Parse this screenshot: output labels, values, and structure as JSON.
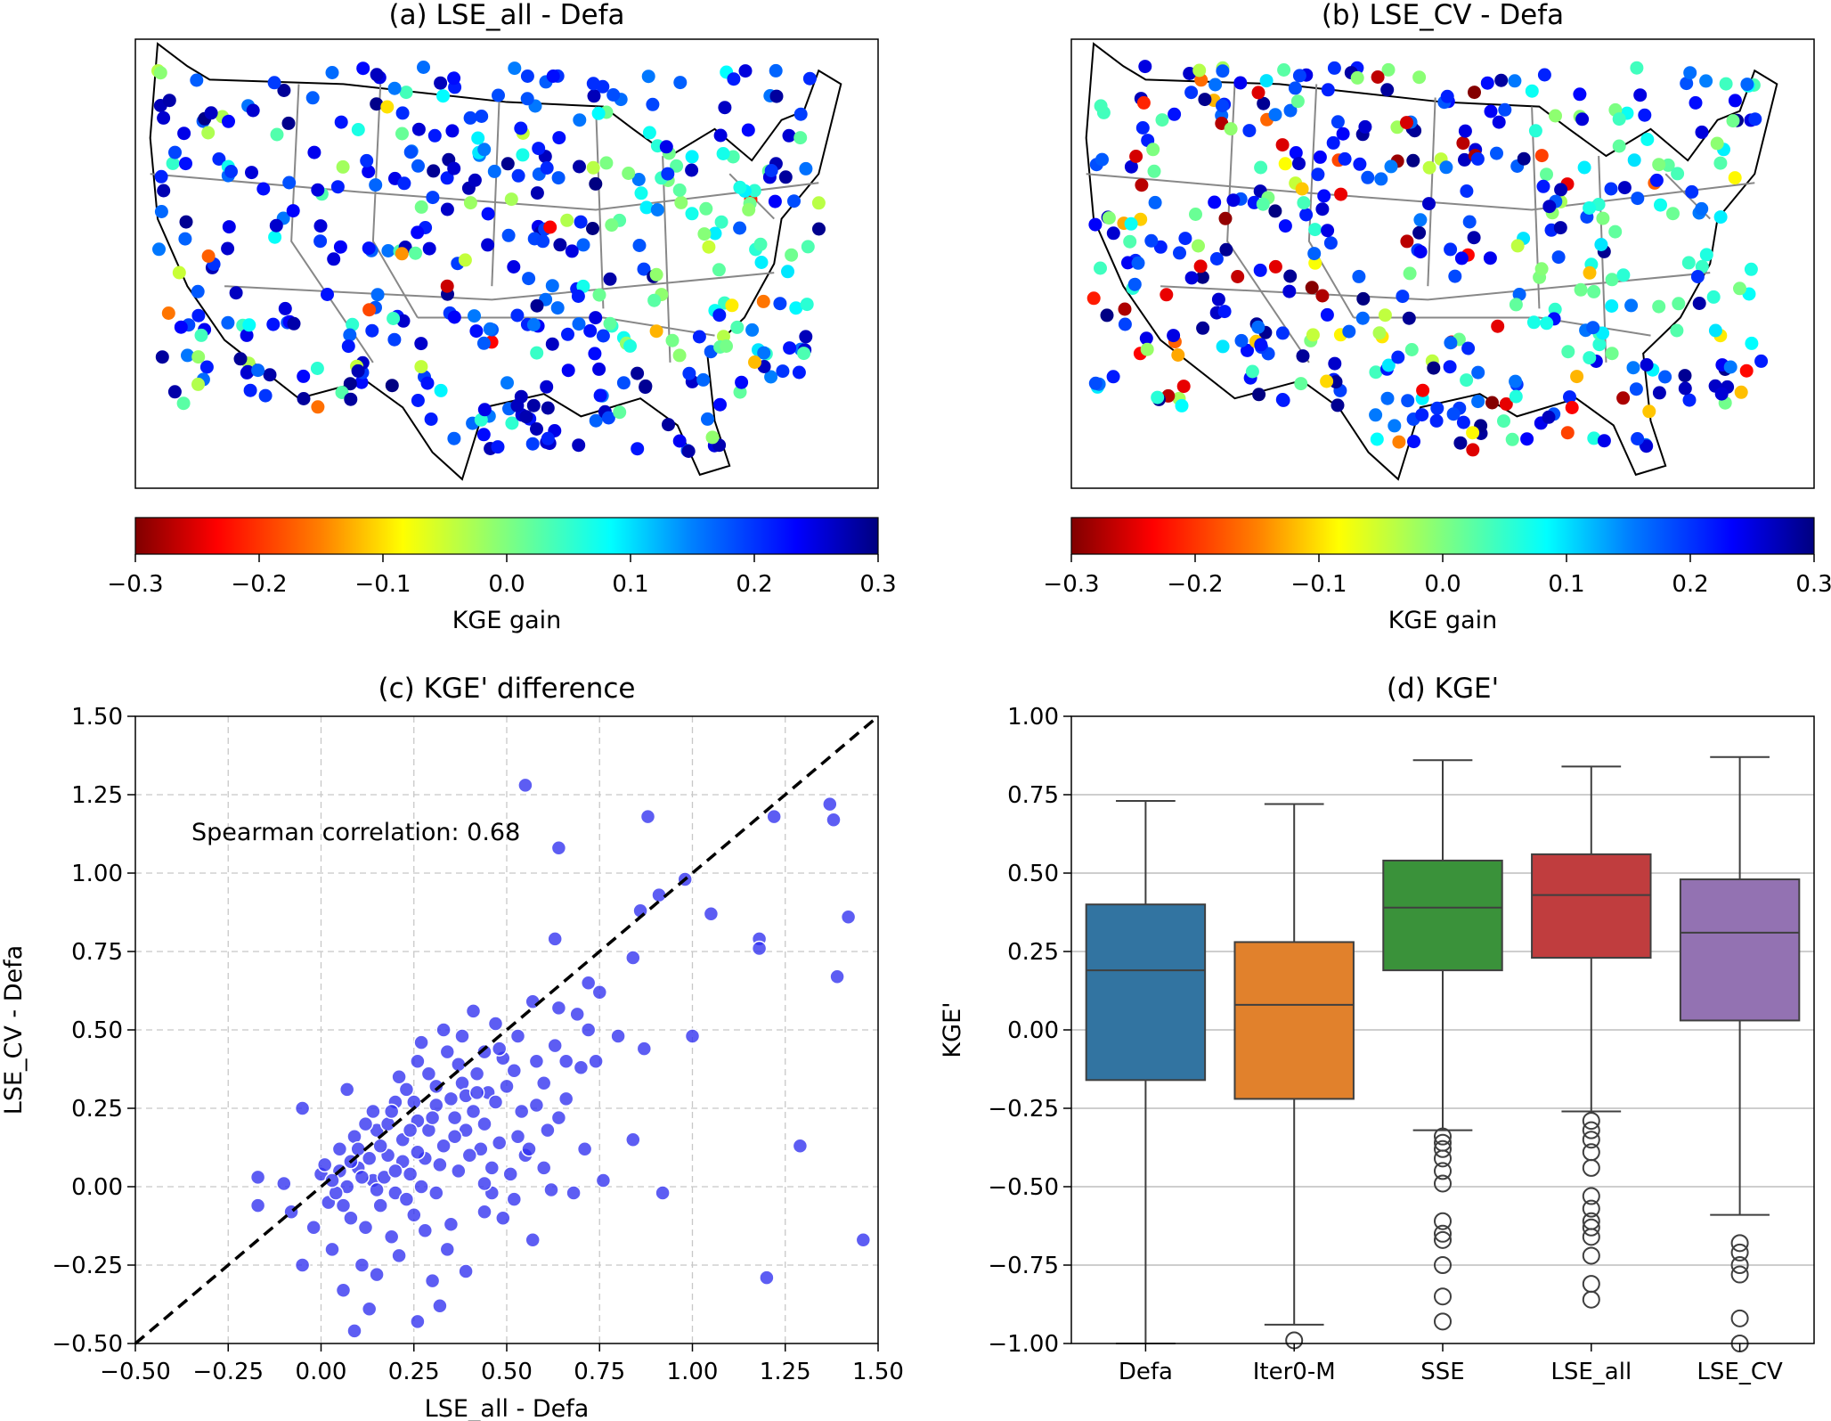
{
  "chart_data": [
    {
      "type": "map-scatter",
      "title": "(a) LSE_all - Defa",
      "colorbar": {
        "label": "KGE gain",
        "cmap": "jet_r",
        "range": [
          -0.3,
          0.3
        ],
        "ticks": [
          "−0.3",
          "−0.2",
          "−0.1",
          "0.0",
          "0.1",
          "0.2",
          "0.3"
        ]
      }
    },
    {
      "type": "map-scatter",
      "title": "(b) LSE_CV - Defa",
      "colorbar": {
        "label": "KGE gain",
        "cmap": "jet_r",
        "range": [
          -0.3,
          0.3
        ],
        "ticks": [
          "−0.3",
          "−0.2",
          "−0.1",
          "0.0",
          "0.1",
          "0.2",
          "0.3"
        ]
      }
    },
    {
      "type": "scatter",
      "title": "(c) KGE' difference",
      "xlabel": "LSE_all - Defa",
      "ylabel": "LSE_CV - Defa",
      "xlim": [
        -0.5,
        1.5
      ],
      "ylim": [
        -0.5,
        1.5
      ],
      "xticks": [
        "−0.50",
        "−0.25",
        "0.00",
        "0.25",
        "0.50",
        "0.75",
        "1.00",
        "1.25",
        "1.50"
      ],
      "yticks": [
        "−0.50",
        "−0.25",
        "0.00",
        "0.25",
        "0.50",
        "0.75",
        "1.00",
        "1.25",
        "1.50"
      ],
      "grid": true,
      "annotation": "Spearman correlation: 0.68",
      "reference_line": "1:1",
      "points": [
        [
          0.55,
          1.28
        ],
        [
          0.88,
          1.18
        ],
        [
          0.64,
          1.08
        ],
        [
          1.22,
          1.18
        ],
        [
          1.37,
          1.22
        ],
        [
          1.38,
          1.17
        ],
        [
          0.98,
          0.98
        ],
        [
          1.05,
          0.87
        ],
        [
          0.86,
          0.88
        ],
        [
          0.91,
          0.93
        ],
        [
          1.42,
          0.86
        ],
        [
          1.18,
          0.79
        ],
        [
          1.18,
          0.76
        ],
        [
          0.63,
          0.79
        ],
        [
          1.39,
          0.67
        ],
        [
          0.84,
          0.73
        ],
        [
          0.72,
          0.65
        ],
        [
          0.75,
          0.62
        ],
        [
          0.57,
          0.59
        ],
        [
          0.64,
          0.57
        ],
        [
          0.69,
          0.55
        ],
        [
          0.72,
          0.5
        ],
        [
          1.0,
          0.48
        ],
        [
          0.87,
          0.44
        ],
        [
          0.66,
          0.4
        ],
        [
          0.6,
          0.33
        ],
        [
          0.52,
          0.37
        ],
        [
          0.54,
          0.24
        ],
        [
          0.64,
          0.22
        ],
        [
          0.48,
          0.14
        ],
        [
          0.55,
          0.1
        ],
        [
          0.6,
          0.06
        ],
        [
          0.71,
          0.12
        ],
        [
          0.84,
          0.15
        ],
        [
          0.76,
          0.02
        ],
        [
          0.62,
          -0.01
        ],
        [
          0.52,
          -0.04
        ],
        [
          0.68,
          -0.02
        ],
        [
          0.92,
          -0.02
        ],
        [
          1.29,
          0.13
        ],
        [
          1.2,
          -0.29
        ],
        [
          1.46,
          -0.17
        ],
        [
          0.57,
          -0.17
        ],
        [
          0.44,
          -0.08
        ],
        [
          0.35,
          -0.12
        ],
        [
          0.3,
          -0.3
        ],
        [
          0.32,
          -0.38
        ],
        [
          0.26,
          -0.43
        ],
        [
          0.13,
          -0.39
        ],
        [
          0.09,
          -0.46
        ],
        [
          0.06,
          -0.33
        ],
        [
          0.11,
          -0.25
        ],
        [
          0.03,
          -0.2
        ],
        [
          -0.02,
          -0.13
        ],
        [
          -0.05,
          -0.25
        ],
        [
          -0.08,
          -0.08
        ],
        [
          -0.17,
          -0.06
        ],
        [
          -0.17,
          0.03
        ],
        [
          -0.1,
          0.01
        ],
        [
          -0.05,
          0.25
        ],
        [
          0.07,
          0.31
        ],
        [
          0.1,
          0.06
        ],
        [
          0.14,
          0.02
        ],
        [
          0.18,
          0.1
        ],
        [
          0.22,
          0.15
        ],
        [
          0.26,
          0.21
        ],
        [
          0.29,
          0.18
        ],
        [
          0.31,
          0.26
        ],
        [
          0.35,
          0.28
        ],
        [
          0.38,
          0.33
        ],
        [
          0.42,
          0.36
        ],
        [
          0.45,
          0.3
        ],
        [
          0.49,
          0.41
        ],
        [
          0.38,
          0.48
        ],
        [
          0.34,
          0.43
        ],
        [
          0.26,
          0.4
        ],
        [
          0.2,
          0.27
        ],
        [
          0.15,
          0.18
        ],
        [
          0.05,
          0.12
        ],
        [
          0.0,
          0.04
        ],
        [
          0.02,
          -0.05
        ],
        [
          0.08,
          -0.1
        ],
        [
          0.16,
          -0.06
        ],
        [
          0.2,
          -0.02
        ],
        [
          0.24,
          0.04
        ],
        [
          0.28,
          0.09
        ],
        [
          0.33,
          0.13
        ],
        [
          0.39,
          0.18
        ],
        [
          0.41,
          0.24
        ],
        [
          0.44,
          0.2
        ],
        [
          0.47,
          0.27
        ],
        [
          0.5,
          0.32
        ],
        [
          0.43,
          0.12
        ],
        [
          0.37,
          0.05
        ],
        [
          0.31,
          -0.02
        ],
        [
          0.25,
          -0.09
        ],
        [
          0.19,
          -0.16
        ],
        [
          0.12,
          -0.13
        ],
        [
          0.06,
          -0.06
        ],
        [
          0.01,
          0.07
        ],
        [
          0.09,
          0.16
        ],
        [
          0.14,
          0.24
        ],
        [
          0.23,
          0.31
        ],
        [
          0.29,
          0.36
        ],
        [
          0.36,
          0.22
        ],
        [
          0.4,
          0.1
        ],
        [
          0.46,
          0.06
        ],
        [
          0.53,
          0.16
        ],
        [
          0.58,
          0.26
        ],
        [
          0.63,
          0.45
        ],
        [
          0.7,
          0.38
        ],
        [
          0.47,
          0.52
        ],
        [
          0.41,
          0.56
        ],
        [
          0.33,
          0.5
        ],
        [
          0.27,
          0.46
        ],
        [
          0.21,
          0.35
        ],
        [
          0.17,
          0.03
        ],
        [
          0.13,
          0.09
        ],
        [
          0.07,
          0.0
        ],
        [
          0.04,
          -0.02
        ],
        [
          0.11,
          0.03
        ],
        [
          0.16,
          0.13
        ],
        [
          0.22,
          0.08
        ],
        [
          0.27,
          0.0
        ],
        [
          0.32,
          0.07
        ],
        [
          0.36,
          0.16
        ],
        [
          0.39,
          0.29
        ],
        [
          0.44,
          0.43
        ],
        [
          0.3,
          0.22
        ],
        [
          0.24,
          0.18
        ],
        [
          0.18,
          0.2
        ],
        [
          0.1,
          0.12
        ],
        [
          0.05,
          0.05
        ],
        [
          0.23,
          -0.04
        ],
        [
          0.28,
          -0.14
        ],
        [
          0.21,
          -0.22
        ],
        [
          0.15,
          -0.28
        ],
        [
          0.34,
          -0.2
        ],
        [
          0.39,
          -0.27
        ],
        [
          0.46,
          -0.02
        ],
        [
          0.51,
          0.04
        ],
        [
          0.56,
          0.12
        ],
        [
          0.61,
          0.18
        ],
        [
          0.66,
          0.28
        ],
        [
          0.74,
          0.4
        ],
        [
          0.8,
          0.48
        ],
        [
          0.48,
          0.44
        ],
        [
          0.37,
          0.39
        ],
        [
          0.31,
          0.32
        ],
        [
          0.25,
          0.27
        ],
        [
          0.19,
          0.24
        ],
        [
          0.12,
          0.2
        ],
        [
          0.08,
          0.08
        ],
        [
          0.03,
          0.02
        ],
        [
          0.15,
          -0.01
        ],
        [
          0.2,
          0.05
        ],
        [
          0.26,
          0.11
        ],
        [
          0.42,
          0.3
        ],
        [
          0.53,
          0.48
        ],
        [
          0.58,
          0.4
        ],
        [
          0.44,
          0.01
        ],
        [
          0.49,
          -0.1
        ]
      ]
    },
    {
      "type": "box",
      "title": "(d) KGE'",
      "xlabel": "",
      "ylabel": "KGE'",
      "ylim": [
        -1.0,
        1.0
      ],
      "yticks": [
        "−1.00",
        "−0.75",
        "−0.50",
        "−0.25",
        "0.00",
        "0.25",
        "0.50",
        "0.75",
        "1.00"
      ],
      "grid": "y",
      "categories": [
        "Defa",
        "Iter0-M",
        "SSE",
        "LSE_all",
        "LSE_CV"
      ],
      "colors": [
        "#3274a1",
        "#e1812c",
        "#3a923a",
        "#c03d3e",
        "#9372b2"
      ],
      "boxes": [
        {
          "name": "Defa",
          "whislo": -1.0,
          "q1": -0.16,
          "median": 0.19,
          "q3": 0.4,
          "whishi": 0.73,
          "fliers": []
        },
        {
          "name": "Iter0-M",
          "whislo": -0.94,
          "q1": -0.22,
          "median": 0.08,
          "q3": 0.28,
          "whishi": 0.72,
          "fliers": [
            -0.99
          ]
        },
        {
          "name": "SSE",
          "whislo": -0.32,
          "q1": 0.19,
          "median": 0.39,
          "q3": 0.54,
          "whishi": 0.86,
          "fliers": [
            -0.34,
            -0.36,
            -0.38,
            -0.41,
            -0.45,
            -0.49,
            -0.61,
            -0.65,
            -0.67,
            -0.75,
            -0.85,
            -0.93
          ]
        },
        {
          "name": "LSE_all",
          "whislo": -0.26,
          "q1": 0.23,
          "median": 0.43,
          "q3": 0.56,
          "whishi": 0.84,
          "fliers": [
            -0.29,
            -0.32,
            -0.35,
            -0.39,
            -0.44,
            -0.53,
            -0.57,
            -0.61,
            -0.63,
            -0.66,
            -0.72,
            -0.81,
            -0.86
          ]
        },
        {
          "name": "LSE_CV",
          "whislo": -0.59,
          "q1": 0.03,
          "median": 0.31,
          "q3": 0.48,
          "whishi": 0.87,
          "fliers": [
            -0.68,
            -0.71,
            -0.75,
            -0.78,
            -0.92,
            -1.0
          ]
        }
      ]
    }
  ]
}
